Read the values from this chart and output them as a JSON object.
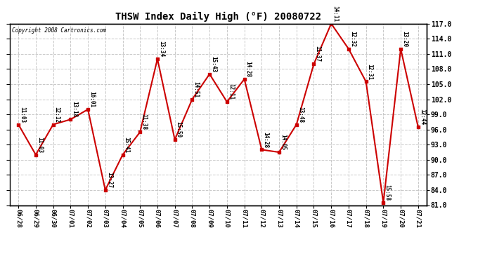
{
  "title": "THSW Index Daily High (°F) 20080722",
  "copyright": "Copyright 2008 Cartronics.com",
  "background_color": "#ffffff",
  "plot_bg_color": "#ffffff",
  "grid_color": "#c8c8c8",
  "line_color": "#cc0000",
  "marker_color": "#cc0000",
  "dates": [
    "06/28",
    "06/29",
    "06/30",
    "07/01",
    "07/02",
    "07/03",
    "07/04",
    "07/05",
    "07/06",
    "07/07",
    "07/08",
    "07/09",
    "07/10",
    "07/11",
    "07/12",
    "07/13",
    "07/14",
    "07/15",
    "07/16",
    "07/17",
    "07/18",
    "07/19",
    "07/20",
    "07/21"
  ],
  "values": [
    97.0,
    91.0,
    97.0,
    98.0,
    100.0,
    84.0,
    91.0,
    95.5,
    110.0,
    94.0,
    102.0,
    107.0,
    101.5,
    106.0,
    92.0,
    91.5,
    97.0,
    109.0,
    117.0,
    112.0,
    105.5,
    81.5,
    112.0,
    96.5
  ],
  "labels": [
    "11:03",
    "11:03",
    "12:12",
    "13:18",
    "16:01",
    "13:27",
    "15:41",
    "11:38",
    "13:34",
    "15:50",
    "14:51",
    "15:43",
    "12:11",
    "14:28",
    "14:28",
    "14:05",
    "13:48",
    "11:37",
    "14:11",
    "12:32",
    "12:31",
    "15:58",
    "13:20",
    "12:44"
  ],
  "ylim": [
    81.0,
    117.0
  ],
  "yticks": [
    81.0,
    84.0,
    87.0,
    90.0,
    93.0,
    96.0,
    99.0,
    102.0,
    105.0,
    108.0,
    111.0,
    114.0,
    117.0
  ]
}
